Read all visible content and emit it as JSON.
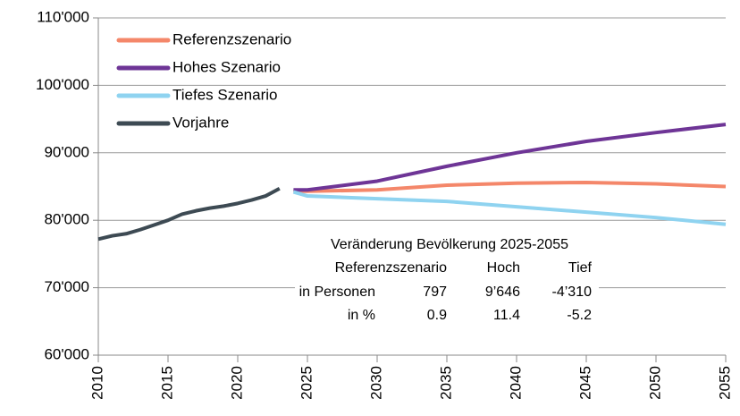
{
  "chart_data": {
    "type": "line",
    "xlim": [
      2010,
      2055
    ],
    "xticks": [
      2010,
      2015,
      2020,
      2025,
      2030,
      2035,
      2040,
      2045,
      2050,
      2055
    ],
    "ylim": [
      60000,
      110000
    ],
    "yticks": [
      {
        "value": 60000,
        "label": "60'000"
      },
      {
        "value": 70000,
        "label": "70'000"
      },
      {
        "value": 80000,
        "label": "80'000"
      },
      {
        "value": 90000,
        "label": "90'000"
      },
      {
        "value": 100000,
        "label": "100'000"
      },
      {
        "value": 110000,
        "label": "110'000"
      }
    ],
    "grid": true,
    "legend": "upper left",
    "series": [
      {
        "name": "Referenzszenario",
        "color": "#f4876a",
        "x": [
          2024,
          2025,
          2030,
          2035,
          2040,
          2045,
          2050,
          2055
        ],
        "values": [
          84300,
          84300,
          84500,
          85200,
          85500,
          85600,
          85400,
          85000
        ]
      },
      {
        "name": "Hohes Szenario",
        "color": "#6e3596",
        "x": [
          2024,
          2025,
          2030,
          2035,
          2040,
          2045,
          2050,
          2055
        ],
        "values": [
          84500,
          84500,
          85800,
          88000,
          90000,
          91700,
          93000,
          94200
        ]
      },
      {
        "name": "Tiefes Szenario",
        "color": "#8fd3f0",
        "x": [
          2024,
          2025,
          2030,
          2035,
          2040,
          2045,
          2050,
          2055
        ],
        "values": [
          84200,
          83600,
          83200,
          82800,
          82000,
          81200,
          80400,
          79400
        ]
      },
      {
        "name": "Vorjahre",
        "color": "#3d4a53",
        "x": [
          2010,
          2011,
          2012,
          2013,
          2014,
          2015,
          2016,
          2017,
          2018,
          2019,
          2020,
          2021,
          2022,
          2023
        ],
        "values": [
          77200,
          77700,
          78000,
          78600,
          79300,
          80000,
          80900,
          81400,
          81800,
          82100,
          82500,
          83000,
          83600,
          84700
        ]
      }
    ],
    "annotation": {
      "title": "Veränderung Bevölkerung 2025-2055",
      "columns": [
        "Referenzszenario",
        "Hoch",
        "Tief"
      ],
      "rows": [
        {
          "label": "in Personen",
          "values": [
            "797",
            "9’646",
            "-4’310"
          ]
        },
        {
          "label": "in %",
          "values": [
            "0.9",
            "11.4",
            "-5.2"
          ]
        }
      ]
    }
  }
}
